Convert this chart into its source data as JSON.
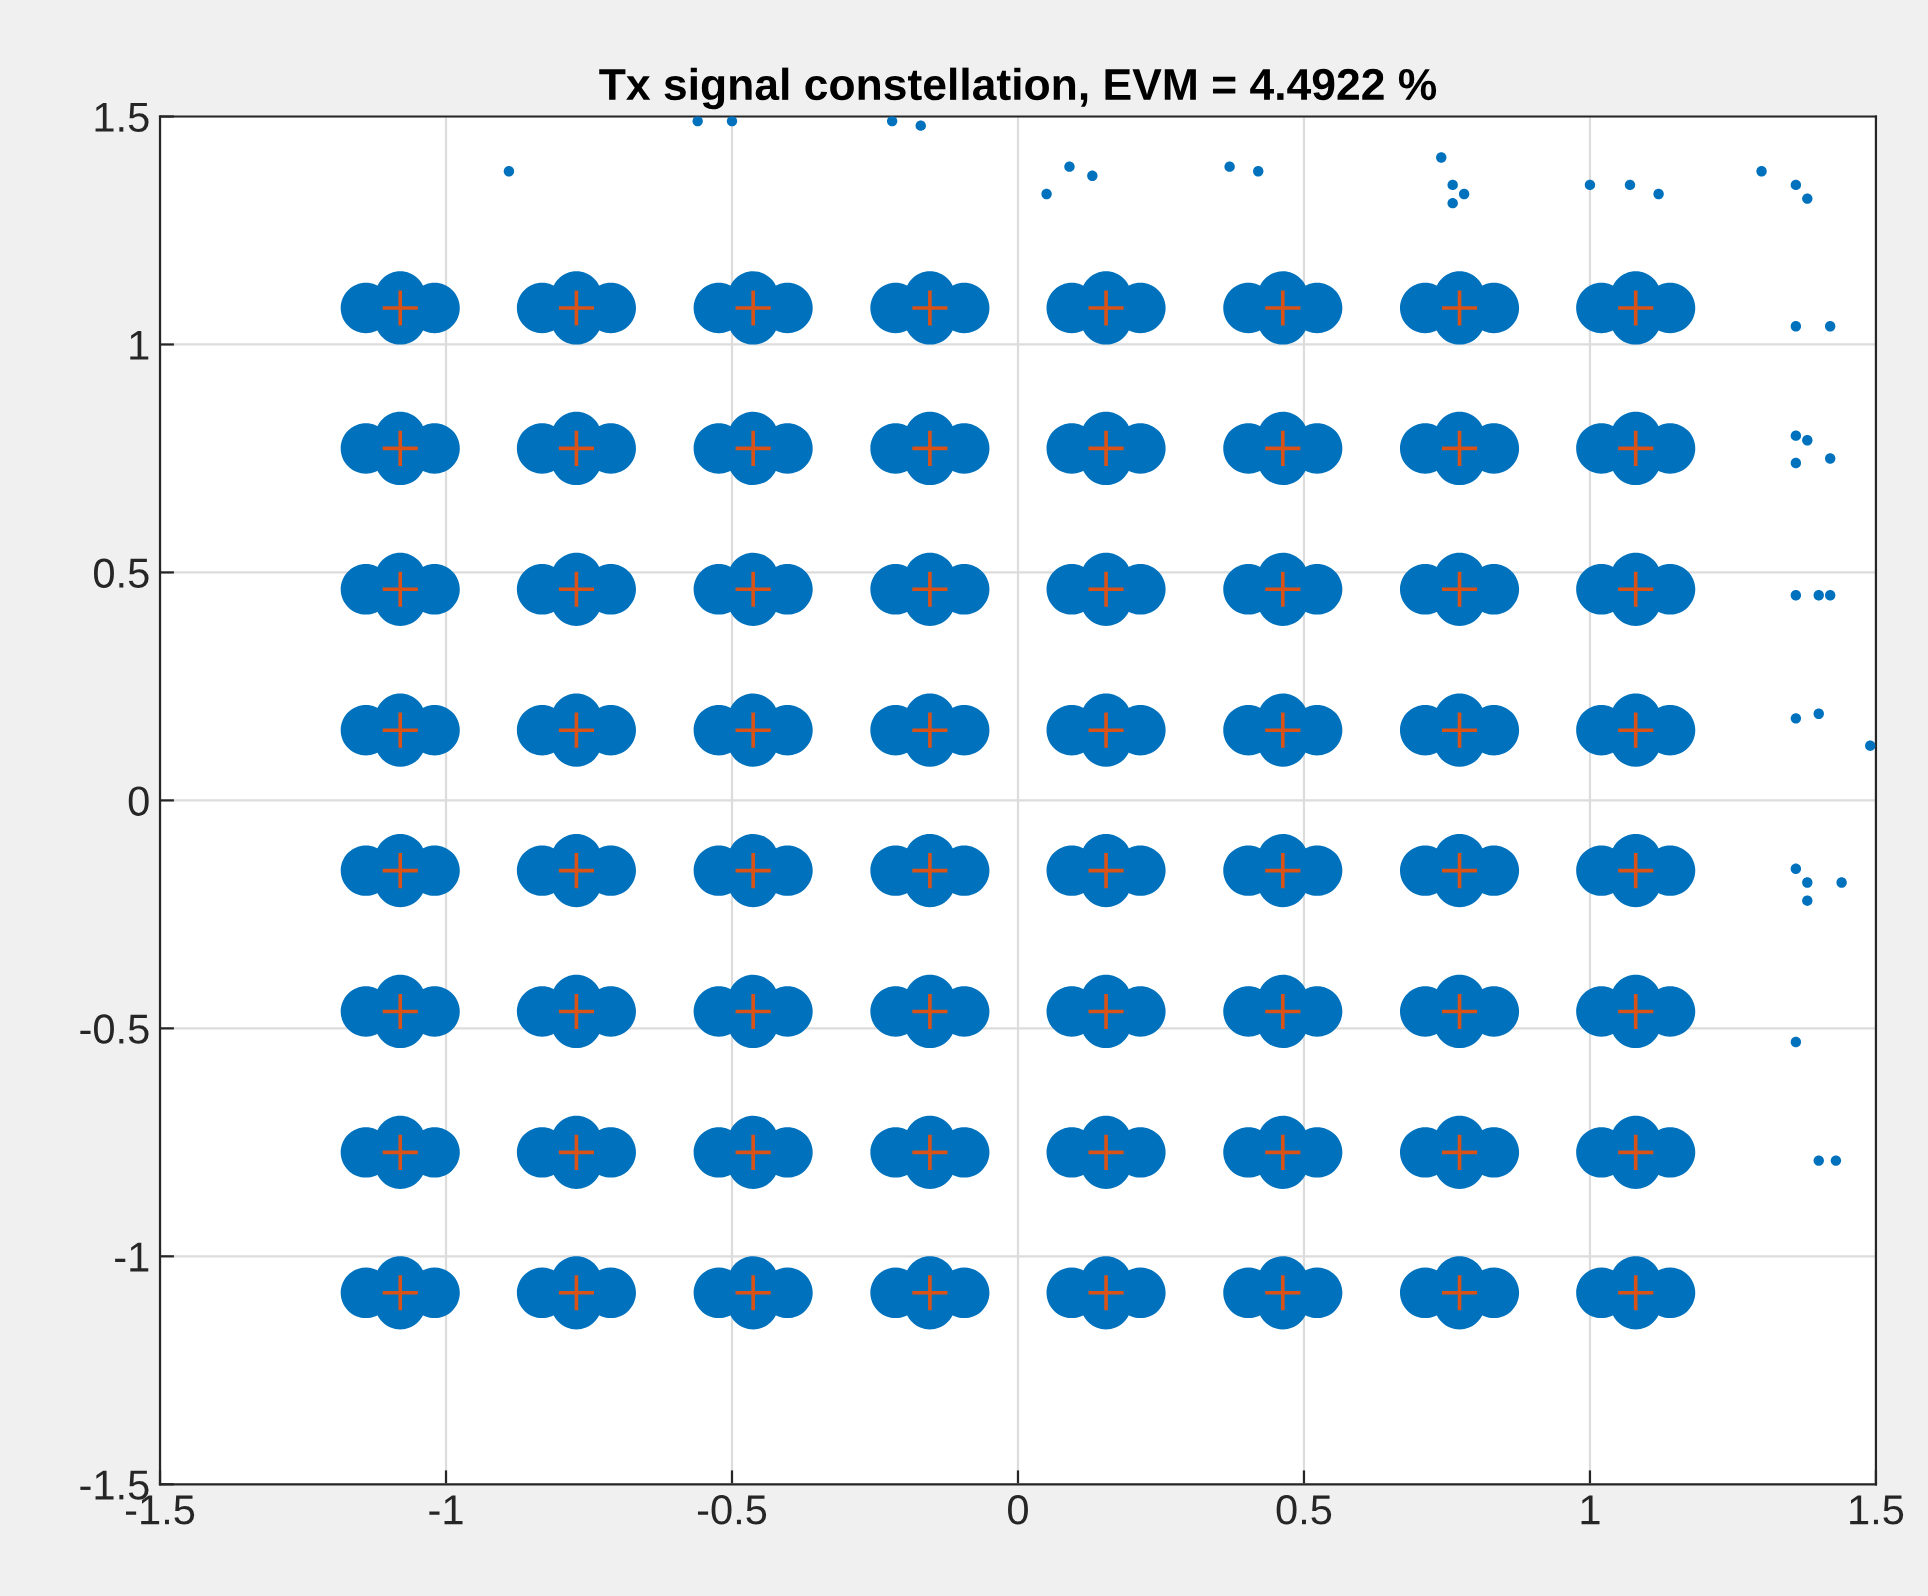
{
  "chart_data": {
    "type": "scatter",
    "title": "Tx signal constellation, EVM = 4.4922 %",
    "xlim": [
      -1.5,
      1.5
    ],
    "ylim": [
      -1.5,
      1.5
    ],
    "xticks": [
      -1.5,
      -1,
      -0.5,
      0,
      0.5,
      1,
      1.5
    ],
    "yticks": [
      -1.5,
      -1,
      -0.5,
      0,
      0.5,
      1,
      1.5
    ],
    "grid": true,
    "series": [
      {
        "color": "#0072bd",
        "marker": "circle",
        "x": [
          -1.14,
          -1.02,
          -1.08,
          -1.08,
          -0.832,
          -0.712,
          -0.772,
          -0.772,
          -0.523,
          -0.403,
          -0.463,
          -0.463,
          -0.214,
          -0.094,
          -0.154,
          -0.154,
          0.094,
          0.214,
          0.154,
          0.154,
          0.403,
          0.523,
          0.463,
          0.463,
          0.712,
          0.832,
          0.772,
          0.772,
          1.02,
          1.14,
          1.08,
          1.08,
          -1.14,
          -1.02,
          -1.08,
          -1.08,
          -0.832,
          -0.712,
          -0.772,
          -0.772,
          -0.523,
          -0.403,
          -0.463,
          -0.463,
          -0.214,
          -0.094,
          -0.154,
          -0.154,
          0.094,
          0.214,
          0.154,
          0.154,
          0.403,
          0.523,
          0.463,
          0.463,
          0.712,
          0.832,
          0.772,
          0.772,
          1.02,
          1.14,
          1.08,
          1.08,
          -1.14,
          -1.02,
          -1.08,
          -1.08,
          -0.832,
          -0.712,
          -0.772,
          -0.772,
          -0.523,
          -0.403,
          -0.463,
          -0.463,
          -0.214,
          -0.094,
          -0.154,
          -0.154,
          0.094,
          0.214,
          0.154,
          0.154,
          0.403,
          0.523,
          0.463,
          0.463,
          0.712,
          0.832,
          0.772,
          0.772,
          1.02,
          1.14,
          1.08,
          1.08,
          -1.14,
          -1.02,
          -1.08,
          -1.08,
          -0.832,
          -0.712,
          -0.772,
          -0.772,
          -0.523,
          -0.403,
          -0.463,
          -0.463,
          -0.214,
          -0.094,
          -0.154,
          -0.154,
          0.094,
          0.214,
          0.154,
          0.154,
          0.403,
          0.523,
          0.463,
          0.463,
          0.712,
          0.832,
          0.772,
          0.772,
          1.02,
          1.14,
          1.08,
          1.08,
          -1.14,
          -1.02,
          -1.08,
          -1.08,
          -0.832,
          -0.712,
          -0.772,
          -0.772,
          -0.523,
          -0.403,
          -0.463,
          -0.463,
          -0.214,
          -0.094,
          -0.154,
          -0.154,
          0.094,
          0.214,
          0.154,
          0.154,
          0.403,
          0.523,
          0.463,
          0.463,
          0.712,
          0.832,
          0.772,
          0.772,
          1.02,
          1.14,
          1.08,
          1.08,
          -1.14,
          -1.02,
          -1.08,
          -1.08,
          -0.832,
          -0.712,
          -0.772,
          -0.772,
          -0.523,
          -0.403,
          -0.463,
          -0.463,
          -0.214,
          -0.094,
          -0.154,
          -0.154,
          0.094,
          0.214,
          0.154,
          0.154,
          0.403,
          0.523,
          0.463,
          0.463,
          0.712,
          0.832,
          0.772,
          0.772,
          1.02,
          1.14,
          1.08,
          1.08,
          -1.14,
          -1.02,
          -1.08,
          -1.08,
          -0.832,
          -0.712,
          -0.772,
          -0.772,
          -0.523,
          -0.403,
          -0.463,
          -0.463,
          -0.214,
          -0.094,
          -0.154,
          -0.154,
          0.094,
          0.214,
          0.154,
          0.154,
          0.403,
          0.523,
          0.463,
          0.463,
          0.712,
          0.832,
          0.772,
          0.772,
          1.02,
          1.14,
          1.08,
          1.08,
          -1.14,
          -1.02,
          -1.08,
          -1.08,
          -0.832,
          -0.712,
          -0.772,
          -0.772,
          -0.523,
          -0.403,
          -0.463,
          -0.463,
          -0.214,
          -0.094,
          -0.154,
          -0.154,
          0.094,
          0.214,
          0.154,
          0.154,
          0.403,
          0.523,
          0.463,
          0.463,
          0.712,
          0.832,
          0.772,
          0.772,
          1.02,
          1.14,
          1.08,
          1.08
        ],
        "values": [
          1.08,
          1.08,
          1.105,
          1.055,
          1.08,
          1.08,
          1.105,
          1.055,
          1.08,
          1.08,
          1.105,
          1.055,
          1.08,
          1.08,
          1.105,
          1.055,
          1.08,
          1.08,
          1.105,
          1.055,
          1.08,
          1.08,
          1.105,
          1.055,
          1.08,
          1.08,
          1.105,
          1.055,
          1.08,
          1.08,
          1.105,
          1.055,
          0.772,
          0.772,
          0.797,
          0.747,
          0.772,
          0.772,
          0.797,
          0.747,
          0.772,
          0.772,
          0.797,
          0.747,
          0.772,
          0.772,
          0.797,
          0.747,
          0.772,
          0.772,
          0.797,
          0.747,
          0.772,
          0.772,
          0.797,
          0.747,
          0.772,
          0.772,
          0.797,
          0.747,
          0.772,
          0.772,
          0.797,
          0.747,
          0.463,
          0.463,
          0.488,
          0.438,
          0.463,
          0.463,
          0.488,
          0.438,
          0.463,
          0.463,
          0.488,
          0.438,
          0.463,
          0.463,
          0.488,
          0.438,
          0.463,
          0.463,
          0.488,
          0.438,
          0.463,
          0.463,
          0.488,
          0.438,
          0.463,
          0.463,
          0.488,
          0.438,
          0.463,
          0.463,
          0.488,
          0.438,
          0.154,
          0.154,
          0.179,
          0.129,
          0.154,
          0.154,
          0.179,
          0.129,
          0.154,
          0.154,
          0.179,
          0.129,
          0.154,
          0.154,
          0.179,
          0.129,
          0.154,
          0.154,
          0.179,
          0.129,
          0.154,
          0.154,
          0.179,
          0.129,
          0.154,
          0.154,
          0.179,
          0.129,
          0.154,
          0.154,
          0.179,
          0.129,
          -0.154,
          -0.154,
          -0.129,
          -0.179,
          -0.154,
          -0.154,
          -0.129,
          -0.179,
          -0.154,
          -0.154,
          -0.129,
          -0.179,
          -0.154,
          -0.154,
          -0.129,
          -0.179,
          -0.154,
          -0.154,
          -0.129,
          -0.179,
          -0.154,
          -0.154,
          -0.129,
          -0.179,
          -0.154,
          -0.154,
          -0.129,
          -0.179,
          -0.154,
          -0.154,
          -0.129,
          -0.179,
          -0.463,
          -0.463,
          -0.438,
          -0.488,
          -0.463,
          -0.463,
          -0.438,
          -0.488,
          -0.463,
          -0.463,
          -0.438,
          -0.488,
          -0.463,
          -0.463,
          -0.438,
          -0.488,
          -0.463,
          -0.463,
          -0.438,
          -0.488,
          -0.463,
          -0.463,
          -0.438,
          -0.488,
          -0.463,
          -0.463,
          -0.438,
          -0.488,
          -0.463,
          -0.463,
          -0.438,
          -0.488,
          -0.772,
          -0.772,
          -0.747,
          -0.797,
          -0.772,
          -0.772,
          -0.747,
          -0.797,
          -0.772,
          -0.772,
          -0.747,
          -0.797,
          -0.772,
          -0.772,
          -0.747,
          -0.797,
          -0.772,
          -0.772,
          -0.747,
          -0.797,
          -0.772,
          -0.772,
          -0.747,
          -0.797,
          -0.772,
          -0.772,
          -0.747,
          -0.797,
          -0.772,
          -0.772,
          -0.747,
          -0.797,
          -1.08,
          -1.08,
          -1.055,
          -1.105,
          -1.08,
          -1.08,
          -1.055,
          -1.105,
          -1.08,
          -1.08,
          -1.055,
          -1.105,
          -1.08,
          -1.08,
          -1.055,
          -1.105,
          -1.08,
          -1.08,
          -1.055,
          -1.105,
          -1.08,
          -1.08,
          -1.055,
          -1.105,
          -1.08,
          -1.08,
          -1.055,
          -1.105,
          -1.08,
          -1.08,
          -1.055,
          -1.105
        ]
      },
      {
        "color": "#0072bd",
        "marker": "circle",
        "x": [
          -0.89,
          -0.56,
          -0.5,
          -0.22,
          -0.17,
          0.05,
          0.09,
          0.13,
          0.37,
          0.42,
          0.74,
          0.76,
          0.78,
          0.76,
          1.0,
          1.07,
          1.12,
          1.3,
          1.36,
          1.38,
          1.36,
          1.42,
          1.36,
          1.38,
          1.42,
          1.36,
          1.36,
          1.4,
          1.42,
          1.36,
          1.4,
          1.49,
          1.36,
          1.38,
          1.38,
          1.44,
          1.36,
          1.4,
          1.43
        ],
        "values": [
          1.38,
          1.49,
          1.49,
          1.49,
          1.48,
          1.33,
          1.39,
          1.37,
          1.39,
          1.38,
          1.41,
          1.35,
          1.33,
          1.31,
          1.35,
          1.35,
          1.33,
          1.38,
          1.35,
          1.32,
          1.04,
          1.04,
          0.8,
          0.79,
          0.75,
          0.74,
          0.45,
          0.45,
          0.45,
          0.18,
          0.19,
          0.12,
          -0.15,
          -0.18,
          -0.22,
          -0.18,
          -0.53,
          -0.79,
          -0.79
        ]
      },
      {
        "color": "#d95319",
        "marker": "cross",
        "x": [
          -1.08,
          -0.772,
          -0.463,
          -0.154,
          0.154,
          0.463,
          0.772,
          1.08,
          -1.08,
          -0.772,
          -0.463,
          -0.154,
          0.154,
          0.463,
          0.772,
          1.08,
          -1.08,
          -0.772,
          -0.463,
          -0.154,
          0.154,
          0.463,
          0.772,
          1.08,
          -1.08,
          -0.772,
          -0.463,
          -0.154,
          0.154,
          0.463,
          0.772,
          1.08,
          -1.08,
          -0.772,
          -0.463,
          -0.154,
          0.154,
          0.463,
          0.772,
          1.08,
          -1.08,
          -0.772,
          -0.463,
          -0.154,
          0.154,
          0.463,
          0.772,
          1.08,
          -1.08,
          -0.772,
          -0.463,
          -0.154,
          0.154,
          0.463,
          0.772,
          1.08,
          -1.08,
          -0.772,
          -0.463,
          -0.154,
          0.154,
          0.463,
          0.772,
          1.08
        ],
        "values": [
          1.08,
          1.08,
          1.08,
          1.08,
          1.08,
          1.08,
          1.08,
          1.08,
          0.772,
          0.772,
          0.772,
          0.772,
          0.772,
          0.772,
          0.772,
          0.772,
          0.463,
          0.463,
          0.463,
          0.463,
          0.463,
          0.463,
          0.463,
          0.463,
          0.154,
          0.154,
          0.154,
          0.154,
          0.154,
          0.154,
          0.154,
          0.154,
          -0.154,
          -0.154,
          -0.154,
          -0.154,
          -0.154,
          -0.154,
          -0.154,
          -0.154,
          -0.463,
          -0.463,
          -0.463,
          -0.463,
          -0.463,
          -0.463,
          -0.463,
          -0.463,
          -0.772,
          -0.772,
          -0.772,
          -0.772,
          -0.772,
          -0.772,
          -0.772,
          -0.772,
          -1.08,
          -1.08,
          -1.08,
          -1.08,
          -1.08,
          -1.08,
          -1.08,
          -1.08
        ]
      }
    ]
  }
}
